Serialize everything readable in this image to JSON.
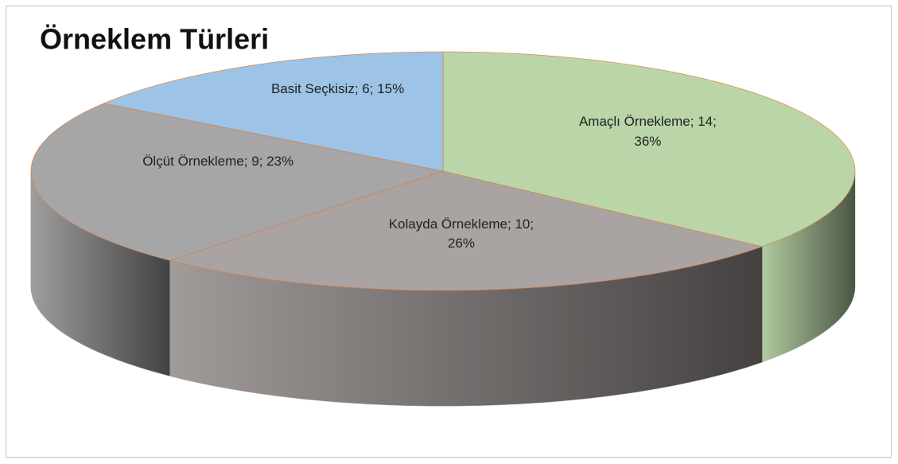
{
  "chart_data": {
    "type": "pie3d",
    "title": "Örneklem Türleri",
    "values": [
      14,
      10,
      9,
      6
    ],
    "value_labels": [
      "Amaçlı Örnekleme; 14; 36%",
      "Kolayda Örnekleme; 10; 26%",
      "Ölçüt Örnekleme; 9; 23%",
      "Basit Seçkisiz; 6; 15%"
    ],
    "colors": [
      "#bad5a8",
      "#a9a3a1",
      "#a6a6a6",
      "#9dc3e6"
    ]
  }
}
